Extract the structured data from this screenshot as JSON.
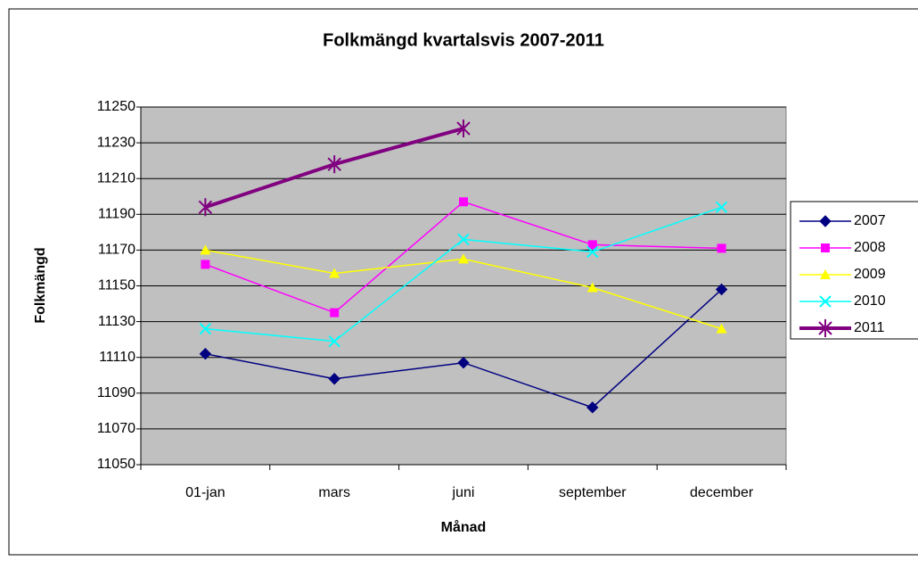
{
  "chart_data": {
    "type": "line",
    "title": "Folkmängd kvartalsvis 2007-2011",
    "x_label": "Månad",
    "y_label": "Folkmängd",
    "categories": [
      "01-jan",
      "mars",
      "juni",
      "september",
      "december"
    ],
    "series": [
      {
        "name": "2007",
        "color": "#000080",
        "marker": "diamond",
        "values": [
          11112,
          11098,
          11107,
          11082,
          11148
        ]
      },
      {
        "name": "2008",
        "color": "#ff00ff",
        "marker": "square",
        "values": [
          11162,
          11135,
          11197,
          11173,
          11171
        ]
      },
      {
        "name": "2009",
        "color": "#ffff00",
        "marker": "triangle",
        "values": [
          11170,
          11157,
          11165,
          11149,
          11126
        ]
      },
      {
        "name": "2010",
        "color": "#00ffff",
        "marker": "x",
        "values": [
          11126,
          11119,
          11176,
          11169,
          11194
        ]
      },
      {
        "name": "2011",
        "color": "#800080",
        "marker": "star",
        "values": [
          11194,
          11218,
          11238,
          null,
          null
        ]
      }
    ],
    "ylim": [
      11050,
      11250
    ],
    "yticks": [
      11050,
      11070,
      11090,
      11110,
      11130,
      11150,
      11170,
      11190,
      11210,
      11230,
      11250
    ],
    "grid": true,
    "legend": "right"
  }
}
